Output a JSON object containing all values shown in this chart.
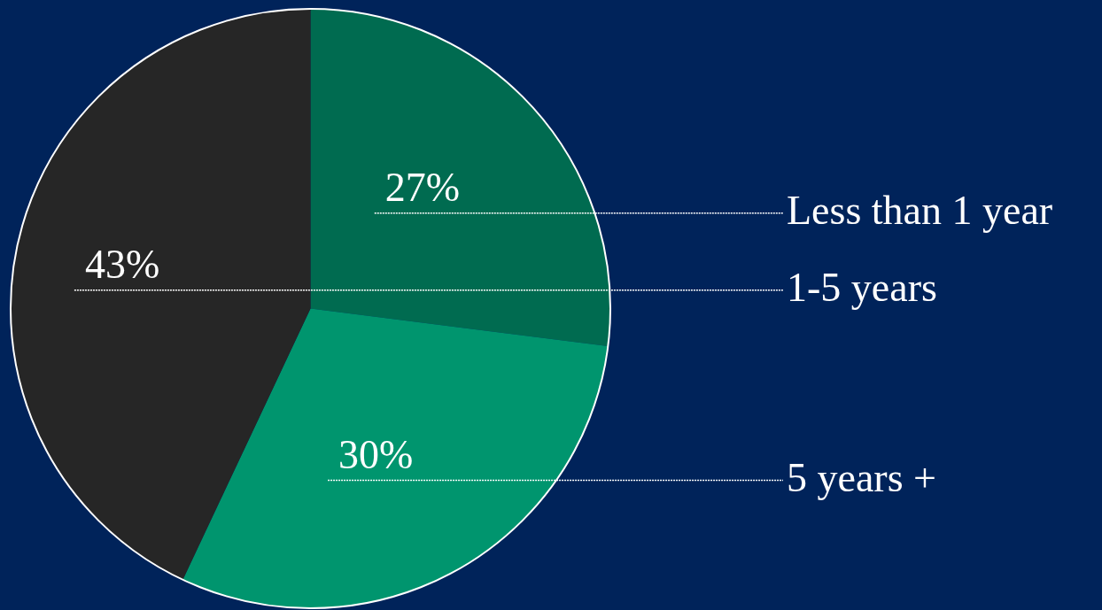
{
  "chart_data": {
    "type": "pie",
    "categories": [
      "Less than 1 year",
      "5 years +",
      "1-5 years"
    ],
    "values": [
      27,
      30,
      43
    ],
    "value_labels": [
      "27%",
      "30%",
      "43%"
    ],
    "colors": [
      "#006b50",
      "#00956e",
      "#262626"
    ],
    "legend": false
  }
}
